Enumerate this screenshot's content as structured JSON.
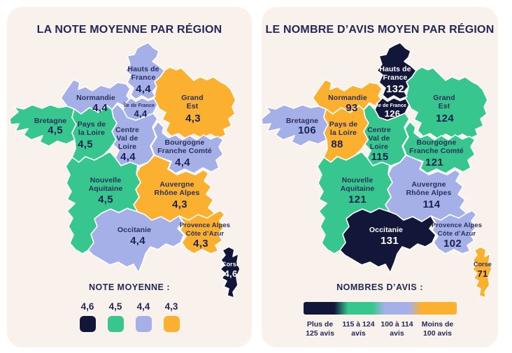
{
  "palette": {
    "navy": "#121739",
    "green": "#37c78e",
    "lavender": "#a6b0e8",
    "orange": "#fcb02f",
    "card_bg": "#f8f1ec",
    "page_bg": "#ffffff",
    "text_dark": "#1b2150",
    "text_name_dark": "#2b2f5c",
    "text_light": "#ffffff"
  },
  "cards": [
    {
      "title": "LA NOTE MOYENNE PAR RÉGION",
      "legend": {
        "title": "NOTE MOYENNE :",
        "type": "swatches",
        "items": [
          {
            "label": "4,6",
            "color": "navy"
          },
          {
            "label": "4,5",
            "color": "green"
          },
          {
            "label": "4,4",
            "color": "lavender"
          },
          {
            "label": "4,3",
            "color": "orange"
          }
        ]
      },
      "regions": {
        "hauts-de-france": {
          "name_lines": [
            "Hauts de",
            "France"
          ],
          "value": "4,4",
          "color": "lavender"
        },
        "normandie": {
          "name_lines": [
            "Normandie"
          ],
          "value": "4,4",
          "color": "lavender"
        },
        "ile-de-france": {
          "name_lines": [
            "Île de France"
          ],
          "value": "4,4",
          "color": "lavender"
        },
        "grand-est": {
          "name_lines": [
            "Grand",
            "Est"
          ],
          "value": "4,3",
          "color": "orange"
        },
        "bretagne": {
          "name_lines": [
            "Bretagne"
          ],
          "value": "4,5",
          "color": "green"
        },
        "pays-de-la-loire": {
          "name_lines": [
            "Pays de",
            "la Loire"
          ],
          "value": "4,5",
          "color": "green"
        },
        "centre-val-de-loire": {
          "name_lines": [
            "Centre",
            "Val de",
            "Loire"
          ],
          "value": "4,4",
          "color": "lavender"
        },
        "bourgogne-franche-comte": {
          "name_lines": [
            "Bourgogne",
            "Franche Comté"
          ],
          "value": "4,4",
          "color": "lavender"
        },
        "nouvelle-aquitaine": {
          "name_lines": [
            "Nouvelle",
            "Aquitaine"
          ],
          "value": "4,5",
          "color": "green"
        },
        "auvergne-rhone-alpes": {
          "name_lines": [
            "Auvergne",
            "Rhône Alpes"
          ],
          "value": "4,3",
          "color": "orange"
        },
        "occitanie": {
          "name_lines": [
            "Occitanie"
          ],
          "value": "4,4",
          "color": "lavender"
        },
        "provence-alpes-cote-dazur": {
          "name_lines": [
            "Provence Alpes",
            "Côte d’Azur"
          ],
          "value": "4,3",
          "color": "orange"
        },
        "corse": {
          "name_lines": [
            "Corse"
          ],
          "value": "4,6",
          "color": "navy"
        }
      }
    },
    {
      "title": "LE NOMBRE D’AVIS MOYEN PAR RÉGION",
      "legend": {
        "title": "NOMBRES D’AVIS :",
        "type": "gradient",
        "items": [
          {
            "label_lines": [
              "Plus de",
              "125 avis"
            ]
          },
          {
            "label_lines": [
              "115 à 124",
              "avis"
            ]
          },
          {
            "label_lines": [
              "100 à 114",
              "avis"
            ]
          },
          {
            "label_lines": [
              "Moins de",
              "100 avis"
            ]
          }
        ]
      },
      "regions": {
        "hauts-de-france": {
          "name_lines": [
            "Hauts de",
            "France"
          ],
          "value": "132",
          "color": "navy"
        },
        "normandie": {
          "name_lines": [
            "Normandie"
          ],
          "value": "93",
          "color": "orange"
        },
        "ile-de-france": {
          "name_lines": [
            "Île de France"
          ],
          "value": "126",
          "color": "navy"
        },
        "grand-est": {
          "name_lines": [
            "Grand",
            "Est"
          ],
          "value": "124",
          "color": "green"
        },
        "bretagne": {
          "name_lines": [
            "Bretagne"
          ],
          "value": "106",
          "color": "lavender"
        },
        "pays-de-la-loire": {
          "name_lines": [
            "Pays de",
            "la Loire"
          ],
          "value": "88",
          "color": "orange"
        },
        "centre-val-de-loire": {
          "name_lines": [
            "Centre",
            "Val de",
            "Loire"
          ],
          "value": "115",
          "color": "green"
        },
        "bourgogne-franche-comte": {
          "name_lines": [
            "Bourgogne",
            "Franche Comté"
          ],
          "value": "121",
          "color": "green"
        },
        "nouvelle-aquitaine": {
          "name_lines": [
            "Nouvelle",
            "Aquitaine"
          ],
          "value": "121",
          "color": "green"
        },
        "auvergne-rhone-alpes": {
          "name_lines": [
            "Auvergne",
            "Rhône Alpes"
          ],
          "value": "114",
          "color": "lavender"
        },
        "occitanie": {
          "name_lines": [
            "Occitanie"
          ],
          "value": "131",
          "color": "navy"
        },
        "provence-alpes-cote-dazur": {
          "name_lines": [
            "Provence Alpes",
            "Côte d’Azur"
          ],
          "value": "102",
          "color": "lavender"
        },
        "corse": {
          "name_lines": [
            "Corse"
          ],
          "value": "71",
          "color": "orange"
        }
      }
    }
  ],
  "chart_data": [
    {
      "type": "choropleth",
      "title": "LA NOTE MOYENNE PAR RÉGION",
      "legend_title": "NOTE MOYENNE :",
      "legend_position": "bottom",
      "classes": [
        {
          "label": "4,6",
          "color": "#121739"
        },
        {
          "label": "4,5",
          "color": "#37c78e"
        },
        {
          "label": "4,4",
          "color": "#a6b0e8"
        },
        {
          "label": "4,3",
          "color": "#fcb02f"
        }
      ],
      "values": {
        "Hauts de France": 4.4,
        "Normandie": 4.4,
        "Île de France": 4.4,
        "Grand Est": 4.3,
        "Bretagne": 4.5,
        "Pays de la Loire": 4.5,
        "Centre Val de Loire": 4.4,
        "Bourgogne Franche Comté": 4.4,
        "Nouvelle Aquitaine": 4.5,
        "Auvergne Rhône Alpes": 4.3,
        "Occitanie": 4.4,
        "Provence Alpes Côte d’Azur": 4.3,
        "Corse": 4.6
      }
    },
    {
      "type": "choropleth",
      "title": "LE NOMBRE D’AVIS MOYEN PAR RÉGION",
      "legend_title": "NOMBRES D’AVIS :",
      "legend_position": "bottom",
      "classes": [
        {
          "label": "Plus de 125 avis",
          "color": "#121739"
        },
        {
          "label": "115 à 124 avis",
          "color": "#37c78e"
        },
        {
          "label": "100 à 114 avis",
          "color": "#a6b0e8"
        },
        {
          "label": "Moins de 100 avis",
          "color": "#fcb02f"
        }
      ],
      "values": {
        "Hauts de France": 132,
        "Normandie": 93,
        "Île de France": 126,
        "Grand Est": 124,
        "Bretagne": 106,
        "Pays de la Loire": 88,
        "Centre Val de Loire": 115,
        "Bourgogne Franche Comté": 121,
        "Nouvelle Aquitaine": 121,
        "Auvergne Rhône Alpes": 114,
        "Occitanie": 131,
        "Provence Alpes Côte d’Azur": 102,
        "Corse": 71
      }
    }
  ]
}
